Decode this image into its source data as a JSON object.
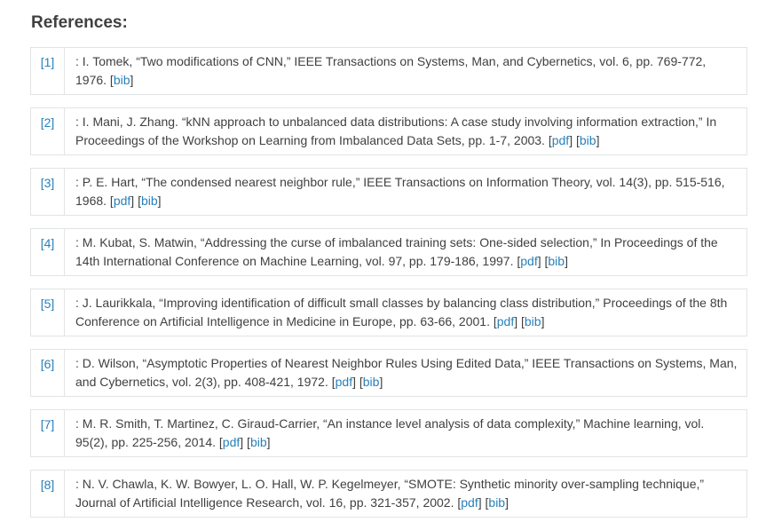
{
  "heading": "References:",
  "references": [
    {
      "num": "[1]",
      "text": ": I. Tomek, “Two modifications of CNN,” IEEE Transactions on Systems, Man, and Cybernetics, vol. 6, pp. 769-772, 1976.",
      "links": [
        "bib"
      ]
    },
    {
      "num": "[2]",
      "text": ": I. Mani, J. Zhang. “kNN approach to unbalanced data distributions: A case study involving information extraction,” In Proceedings of the Workshop on Learning from Imbalanced Data Sets, pp. 1-7, 2003.",
      "links": [
        "pdf",
        "bib"
      ]
    },
    {
      "num": "[3]",
      "text": ": P. E. Hart, “The condensed nearest neighbor rule,” IEEE Transactions on Information Theory, vol. 14(3), pp. 515-516, 1968.",
      "links": [
        "pdf",
        "bib"
      ]
    },
    {
      "num": "[4]",
      "text": ": M. Kubat, S. Matwin, “Addressing the curse of imbalanced training sets: One-sided selection,” In Proceedings of the 14th International Conference on Machine Learning, vol. 97, pp. 179-186, 1997.",
      "links": [
        "pdf",
        "bib"
      ]
    },
    {
      "num": "[5]",
      "text": ": J. Laurikkala, “Improving identification of difficult small classes by balancing class distribution,” Proceedings of the 8th Conference on Artificial Intelligence in Medicine in Europe, pp. 63-66, 2001.",
      "links": [
        "pdf",
        "bib"
      ]
    },
    {
      "num": "[6]",
      "text": ": D. Wilson, “Asymptotic Properties of Nearest Neighbor Rules Using Edited Data,” IEEE Transactions on Systems, Man, and Cybernetics, vol. 2(3), pp. 408-421, 1972.",
      "links": [
        "pdf",
        "bib"
      ]
    },
    {
      "num": "[7]",
      "text": ": M. R. Smith, T. Martinez, C. Giraud-Carrier, “An instance level analysis of data complexity,” Machine learning, vol. 95(2), pp. 225-256, 2014.",
      "links": [
        "pdf",
        "bib"
      ]
    },
    {
      "num": "[8]",
      "text": ": N. V. Chawla, K. W. Bowyer, L. O. Hall, W. P. Kegelmeyer, “SMOTE: Synthetic minority over-sampling technique,” Journal of Artificial Intelligence Research, vol. 16, pp. 321-357, 2002.",
      "links": [
        "pdf",
        "bib"
      ]
    }
  ]
}
